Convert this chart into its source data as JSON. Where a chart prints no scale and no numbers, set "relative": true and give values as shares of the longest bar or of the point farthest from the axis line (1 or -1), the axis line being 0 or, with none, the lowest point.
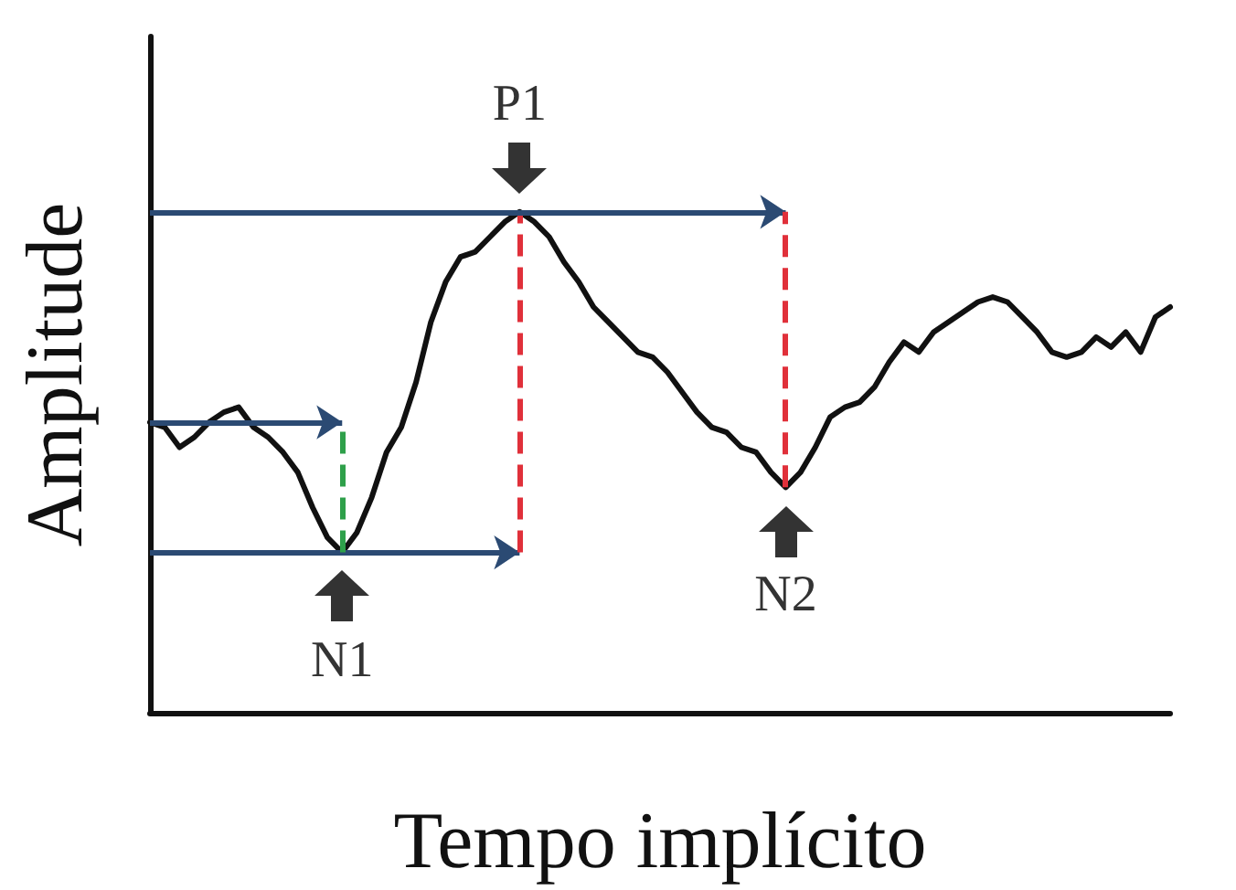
{
  "chart_data": {
    "type": "line",
    "relative": true,
    "xlabel": "Tempo implícito",
    "ylabel": "Amplitude",
    "color": "#111111",
    "grid": false,
    "line_style": "solid",
    "categories": [
      null,
      null,
      null,
      null,
      null,
      null,
      null,
      null,
      null,
      null,
      null,
      null,
      null,
      null,
      null,
      null,
      null,
      null,
      null,
      null,
      null,
      null,
      null,
      null,
      null,
      null,
      null,
      null,
      null,
      null,
      null,
      null,
      null,
      null,
      null,
      null,
      null,
      null,
      null,
      null,
      null,
      null,
      null,
      null,
      null,
      null,
      null,
      null,
      null,
      null,
      null,
      null,
      null,
      null,
      null,
      null,
      null,
      null,
      null,
      null,
      null,
      null,
      null,
      null,
      null,
      null,
      null,
      null,
      null,
      null
    ],
    "values": [
      0.58,
      0.57,
      0.53,
      0.55,
      0.58,
      0.6,
      0.61,
      0.57,
      0.55,
      0.52,
      0.48,
      0.41,
      0.35,
      0.32,
      0.36,
      0.43,
      0.52,
      0.57,
      0.66,
      0.78,
      0.86,
      0.91,
      0.92,
      0.95,
      0.98,
      1,
      0.98,
      0.95,
      0.9,
      0.86,
      0.81,
      0.78,
      0.75,
      0.72,
      0.71,
      0.68,
      0.64,
      0.6,
      0.57,
      0.56,
      0.53,
      0.52,
      0.48,
      0.45,
      0.48,
      0.53,
      0.59,
      0.61,
      0.62,
      0.65,
      0.7,
      0.74,
      0.72,
      0.76,
      0.78,
      0.8,
      0.82,
      0.83,
      0.82,
      0.79,
      0.76,
      0.72,
      0.71,
      0.72,
      0.75,
      0.73,
      0.76,
      0.72,
      0.79,
      0.81
    ],
    "annotations": [
      {
        "text": "P1",
        "y": 1
      },
      {
        "text": "N1",
        "y": 0.32
      },
      {
        "text": "N2",
        "y": 0.45
      }
    ]
  }
}
